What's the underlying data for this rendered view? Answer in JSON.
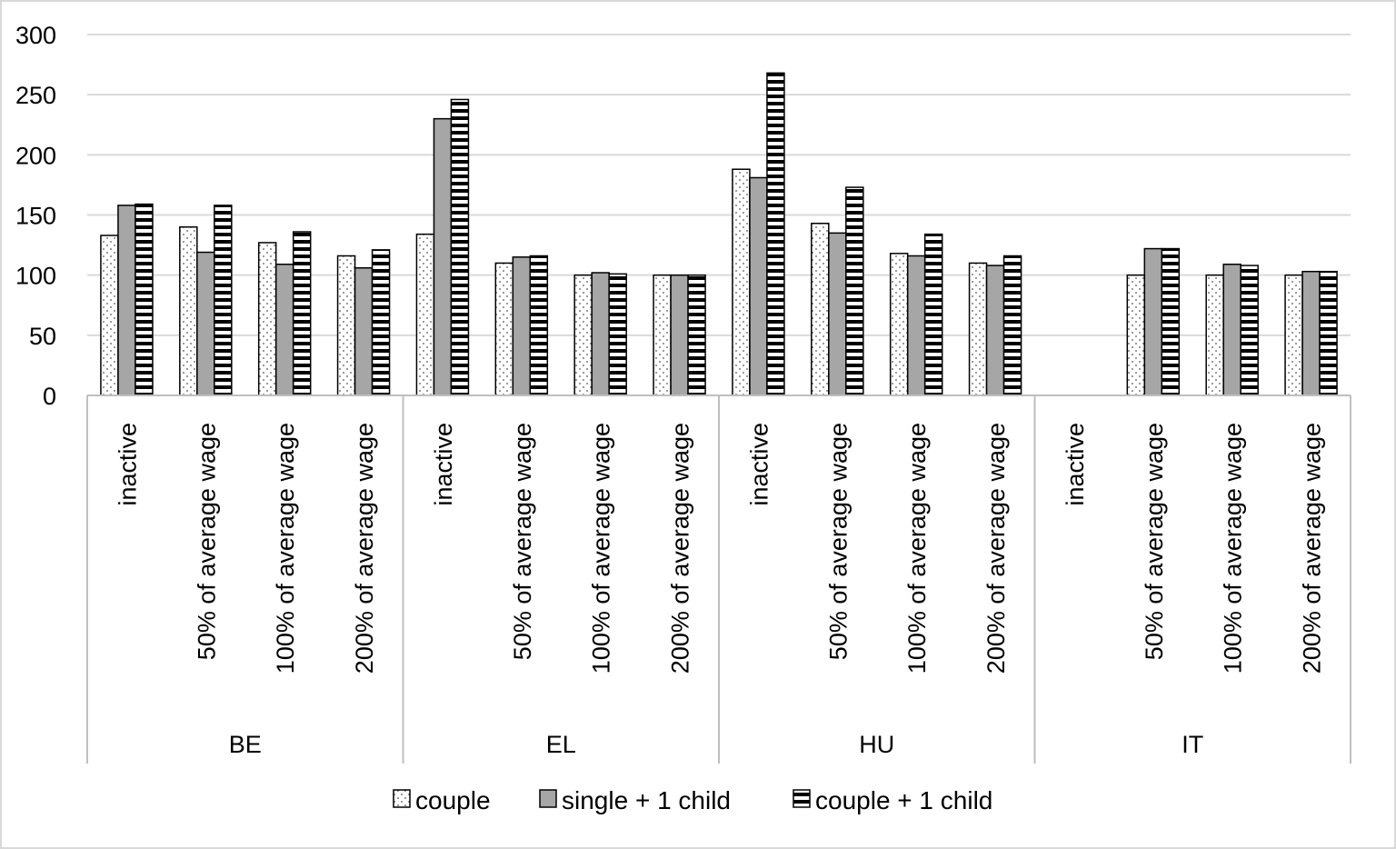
{
  "chart_data": {
    "type": "bar",
    "title": "",
    "xlabel": "",
    "ylabel": "",
    "ylim": [
      0,
      300
    ],
    "yticks": [
      "0",
      "50",
      "100",
      "150",
      "200",
      "250",
      "300"
    ],
    "grid": true,
    "legend_position": "bottom",
    "groups": [
      {
        "name": "BE",
        "categories": [
          "inactive",
          "50% of average wage",
          "100% of average wage",
          "200% of average wage"
        ]
      },
      {
        "name": "EL",
        "categories": [
          "inactive",
          "50% of average wage",
          "100% of average wage",
          "200% of average wage"
        ]
      },
      {
        "name": "HU",
        "categories": [
          "inactive",
          "50% of average wage",
          "100% of average wage",
          "200% of average wage"
        ]
      },
      {
        "name": "IT",
        "categories": [
          "inactive",
          "50% of average wage",
          "100% of average wage",
          "200% of average wage"
        ]
      }
    ],
    "series": [
      {
        "name": "couple",
        "pattern": "dotted-white",
        "values": [
          133,
          140,
          127,
          116,
          134,
          110,
          100,
          100,
          188,
          143,
          118,
          110,
          null,
          100,
          100,
          100
        ]
      },
      {
        "name": "single + 1 child",
        "pattern": "solid-gray",
        "values": [
          158,
          119,
          109,
          106,
          230,
          115,
          102,
          100,
          181,
          135,
          116,
          108,
          null,
          122,
          109,
          103
        ]
      },
      {
        "name": "couple + 1 child",
        "pattern": "horizontal-stripes",
        "values": [
          159,
          158,
          136,
          121,
          246,
          116,
          101,
          100,
          268,
          173,
          134,
          116,
          null,
          122,
          108,
          103
        ]
      }
    ],
    "colors": {
      "gray": "#a6a6a6",
      "stripe": "#000000",
      "grid": "#d9d9d9",
      "axis": "#bfbfbf"
    }
  }
}
